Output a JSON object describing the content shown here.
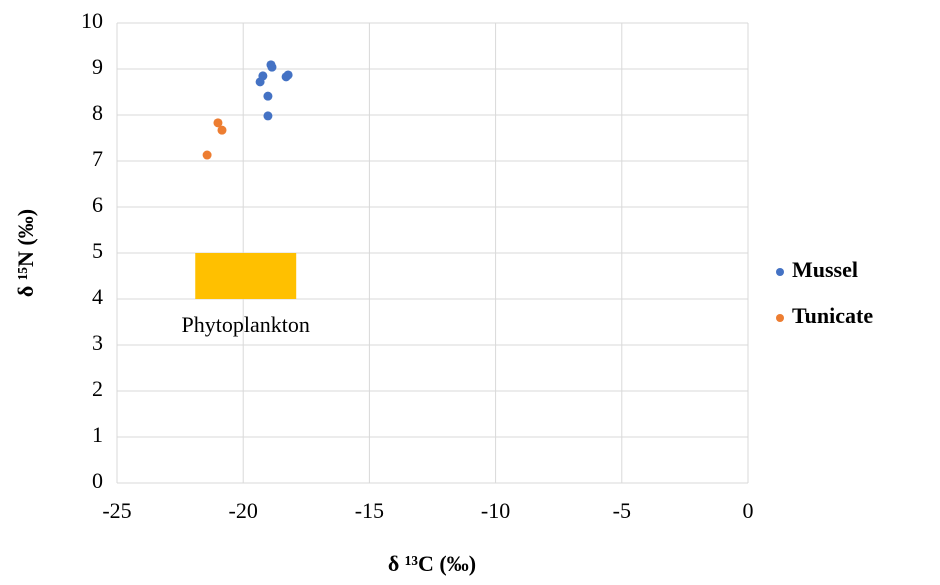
{
  "chart_data": {
    "type": "scatter",
    "x_label": "δ ¹³C (‰)",
    "y_label": "δ ¹⁵N (‰)",
    "series": [
      {
        "name": "Mussel",
        "color": "#4472c4",
        "x": [
          -19.33,
          -19.22,
          -19.02,
          -19.02,
          -18.9,
          -18.86,
          -18.3,
          -18.22
        ],
        "values": [
          8.72,
          8.85,
          8.41,
          7.98,
          9.09,
          9.04,
          8.83,
          8.87
        ]
      },
      {
        "name": "Tunicate",
        "color": "#ed7d31",
        "x": [
          -21.0,
          -20.84,
          -21.43
        ],
        "values": [
          7.83,
          7.67,
          7.13
        ]
      }
    ],
    "region": {
      "label": "Phytoplankton",
      "color": "#ffc000",
      "xlim": [
        -21.9,
        -17.9
      ],
      "ylim": [
        4,
        5
      ]
    },
    "xlim": [
      -25,
      0
    ],
    "xticks": [
      -25,
      -20,
      -15,
      -10,
      -5,
      0
    ],
    "ylim": [
      0,
      10
    ],
    "yticks": [
      0,
      1,
      2,
      3,
      4,
      5,
      6,
      7,
      8,
      9,
      10
    ],
    "grid": true,
    "legend": "right"
  }
}
